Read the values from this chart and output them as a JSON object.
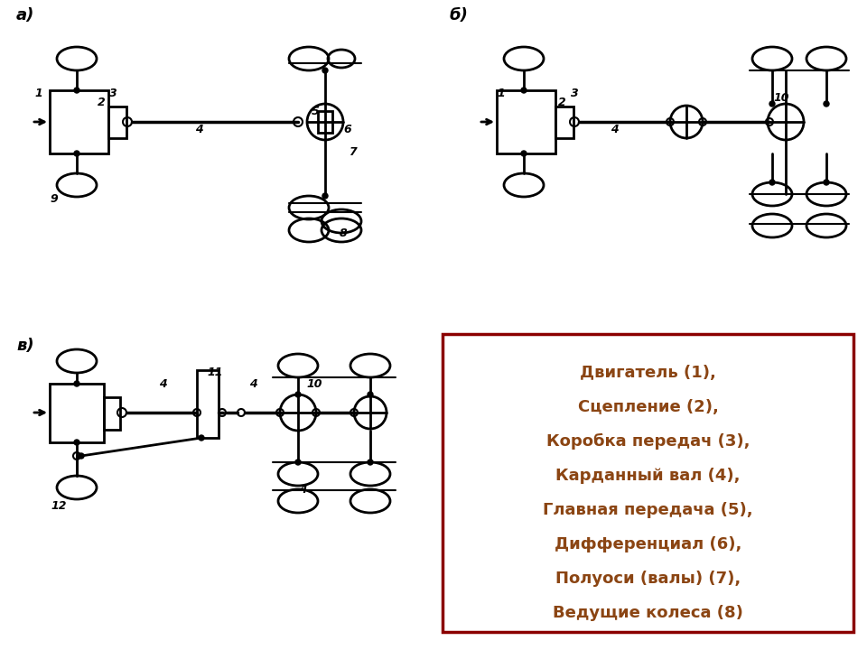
{
  "background_color": "#ffffff",
  "label_color": "#8B4513",
  "diagram_color": "#000000",
  "border_color": "#8B0000",
  "legend_lines": [
    "Двигатель (1),",
    "Сцепление (2),",
    "Коробка передач (3),",
    "Карданный вал (4),",
    "Главная передача (5),",
    "Дифференциал (6),",
    "Полуоси (валы) (7),",
    "Ведущие колеса (8)"
  ],
  "label_a": "а)",
  "label_b": "б)",
  "label_c": "в)"
}
